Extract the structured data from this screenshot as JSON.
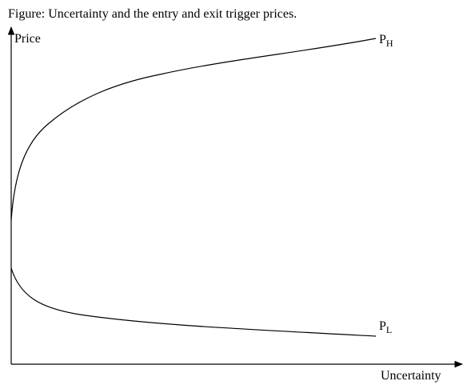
{
  "title": "Figure: Uncertainty and the entry and exit trigger prices.",
  "y_axis_label": "Price",
  "x_axis_label": "Uncertainty",
  "curves": [
    {
      "label": "P",
      "subscript": "H"
    },
    {
      "label": "P",
      "subscript": "L"
    }
  ]
}
